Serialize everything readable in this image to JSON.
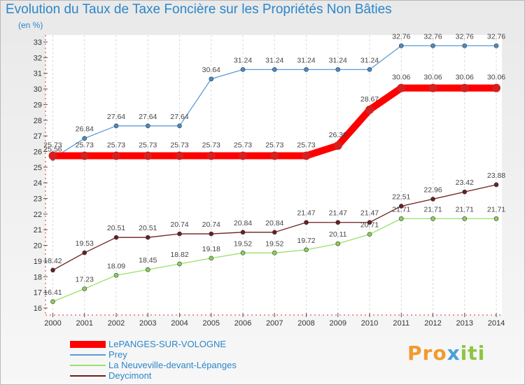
{
  "title": "Evolution du Taux de Taxe Foncière sur les Propriétés Non Bâties",
  "subtitle": "(en %)",
  "logo": {
    "p": "Pro",
    "x": "x",
    "i": "iti"
  },
  "legend": [
    {
      "label": "LePANGES-SUR-VOLOGNE",
      "color": "#ff0000",
      "width": 10
    },
    {
      "label": "Prey",
      "color": "#5b9bd5",
      "width": 2
    },
    {
      "label": "La Neuveville-devant-Lépanges",
      "color": "#9be06a",
      "width": 2
    },
    {
      "label": "Deycimont",
      "color": "#6b1f1f",
      "width": 2
    }
  ],
  "chart_data": {
    "type": "line",
    "title": "Evolution du Taux de Taxe Foncière sur les Propriétés Non Bâties",
    "ylabel": "(en %)",
    "ylim": [
      16,
      33
    ],
    "yticks": [
      "16",
      "17",
      "18",
      "19",
      "20",
      "21",
      "22",
      "23",
      "24",
      "25",
      "26",
      "27",
      "28",
      "29",
      "30",
      "31",
      "32",
      "33"
    ],
    "x": [
      "2000",
      "2001",
      "2002",
      "2003",
      "2004",
      "2005",
      "2006",
      "2007",
      "2008",
      "2009",
      "2010",
      "2011",
      "2012",
      "2013",
      "2014"
    ],
    "grid": "vertical",
    "legend_position": "bottom-left",
    "series": [
      {
        "name": "LePANGES-SUR-VOLOGNE",
        "color": "#ff0000",
        "marker_color": "#d42020",
        "stroke": 10,
        "values": [
          25.73,
          25.73,
          25.73,
          25.73,
          25.73,
          25.73,
          25.73,
          25.73,
          25.73,
          26.38,
          28.67,
          30.06,
          30.06,
          30.06,
          30.06
        ],
        "labels": [
          "25.73",
          "25.73",
          "25.73",
          "25.73",
          "25.73",
          "25.73",
          "25.73",
          "25.73",
          "25.73",
          "26.38",
          "28.67",
          "30.06",
          "30.06",
          "30.06",
          "30.06"
        ]
      },
      {
        "name": "Prey",
        "color": "#5b9bd5",
        "marker_color": "#4a8bc4",
        "stroke": 1.3,
        "values": [
          25.56,
          26.84,
          27.64,
          27.64,
          27.64,
          30.64,
          31.24,
          31.24,
          31.24,
          31.24,
          31.24,
          32.76,
          32.76,
          32.76,
          32.76
        ],
        "labels": [
          "25.56",
          "26.84",
          "27.64",
          "27.64",
          "27.64",
          "30.64",
          "31.24",
          "31.24",
          "31.24",
          "31.24",
          "31.24",
          "32.76",
          "32.76",
          "32.76",
          "32.76"
        ]
      },
      {
        "name": "La Neuveville-devant-Lépanges",
        "color": "#9be06a",
        "marker_color": "#8ad05a",
        "stroke": 1.3,
        "values": [
          16.41,
          17.23,
          18.09,
          18.45,
          18.82,
          19.18,
          19.52,
          19.52,
          19.72,
          20.11,
          20.71,
          21.71,
          21.71,
          21.71,
          21.71
        ],
        "labels": [
          "16.41",
          "17.23",
          "18.09",
          "18.45",
          "18.82",
          "19.18",
          "19.52",
          "19.52",
          "19.72",
          "20.11",
          "20.71",
          "21.71",
          "21.71",
          "21.71",
          "21.71"
        ]
      },
      {
        "name": "Deycimont",
        "color": "#6b1f1f",
        "marker_color": "#6b1f1f",
        "stroke": 1.3,
        "values": [
          18.42,
          19.53,
          20.51,
          20.51,
          20.74,
          20.74,
          20.84,
          20.84,
          21.47,
          21.47,
          21.47,
          22.51,
          22.96,
          23.42,
          23.88
        ],
        "labels": [
          "18.42",
          "19.53",
          "20.51",
          "20.51",
          "20.74",
          "20.74",
          "20.84",
          "20.84",
          "21.47",
          "21.47",
          "21.47",
          "22.51",
          "22.96",
          "23.42",
          "23.88"
        ]
      }
    ]
  }
}
